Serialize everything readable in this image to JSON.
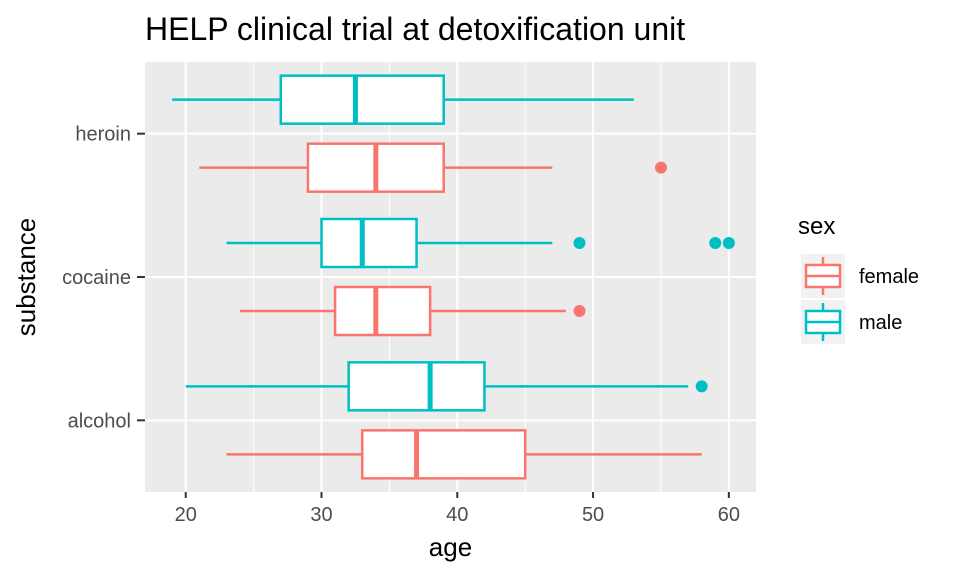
{
  "chart_data": {
    "type": "boxplot",
    "orientation": "horizontal",
    "title": "HELP clinical trial at detoxification unit",
    "xlabel": "age",
    "ylabel": "substance",
    "xlim": [
      17,
      62
    ],
    "x_ticks": [
      20,
      30,
      40,
      50,
      60
    ],
    "categories": [
      "alcohol",
      "cocaine",
      "heroin"
    ],
    "legend": {
      "title": "sex",
      "position": "right"
    },
    "grid": true,
    "series": [
      {
        "name": "female",
        "color": "#F8766D",
        "boxes": [
          {
            "category": "alcohol",
            "whisker_low": 23,
            "q1": 33,
            "median": 37,
            "q3": 45,
            "whisker_high": 58,
            "outliers": []
          },
          {
            "category": "cocaine",
            "whisker_low": 24,
            "q1": 31,
            "median": 34,
            "q3": 38,
            "whisker_high": 48,
            "outliers": [
              49
            ]
          },
          {
            "category": "heroin",
            "whisker_low": 21,
            "q1": 29,
            "median": 34,
            "q3": 39,
            "whisker_high": 47,
            "outliers": [
              55
            ]
          }
        ]
      },
      {
        "name": "male",
        "color": "#00BFC4",
        "boxes": [
          {
            "category": "alcohol",
            "whisker_low": 20,
            "q1": 32,
            "median": 38,
            "q3": 42,
            "whisker_high": 57,
            "outliers": [
              58
            ]
          },
          {
            "category": "cocaine",
            "whisker_low": 23,
            "q1": 30,
            "median": 33,
            "q3": 37,
            "whisker_high": 47,
            "outliers": [
              49,
              59,
              60
            ]
          },
          {
            "category": "heroin",
            "whisker_low": 19,
            "q1": 27,
            "median": 32.5,
            "q3": 39,
            "whisker_high": 53,
            "outliers": []
          }
        ]
      }
    ]
  }
}
